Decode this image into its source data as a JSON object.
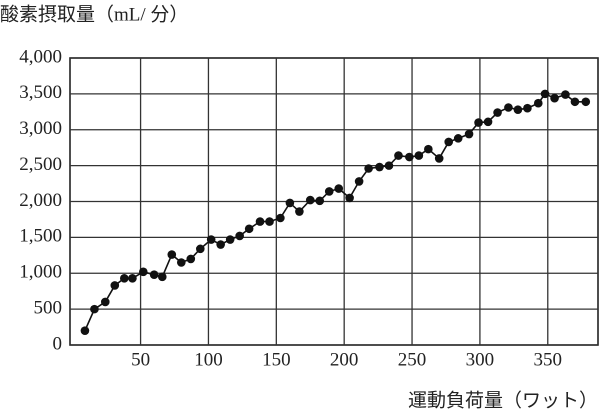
{
  "chart_data": {
    "type": "line",
    "title": "酸素摂取量（mL/ 分）",
    "x_label": "運動負荷量（ワット）",
    "x": [
      9,
      16,
      24,
      31,
      38,
      44,
      52,
      60,
      66,
      73,
      80,
      87,
      94,
      102,
      109,
      116,
      123,
      130,
      138,
      145,
      153,
      160,
      167,
      175,
      182,
      189,
      196,
      204,
      211,
      218,
      226,
      233,
      240,
      248,
      255,
      262,
      270,
      277,
      284,
      292,
      299,
      306,
      313,
      321,
      328,
      335,
      343,
      348,
      355,
      363,
      370,
      378
    ],
    "series": [
      {
        "name": "酸素摂取量",
        "color": "#111111",
        "values": [
          200,
          500,
          600,
          830,
          930,
          930,
          1020,
          980,
          950,
          1260,
          1150,
          1200,
          1340,
          1470,
          1400,
          1470,
          1520,
          1620,
          1720,
          1720,
          1770,
          1980,
          1860,
          2020,
          2010,
          2140,
          2180,
          2050,
          2280,
          2460,
          2480,
          2500,
          2640,
          2620,
          2640,
          2730,
          2600,
          2830,
          2880,
          2940,
          3100,
          3110,
          3240,
          3310,
          3280,
          3300,
          3370,
          3500,
          3440,
          3490,
          3390,
          3390
        ]
      }
    ],
    "xlim": [
      -2,
      387
    ],
    "xticks": [
      50,
      100,
      150,
      200,
      250,
      300,
      350
    ],
    "ylim": [
      0,
      4000
    ],
    "yticks": [
      0,
      500,
      {
        "value": 1000,
        "label": "1,000"
      },
      {
        "value": 1500,
        "label": "1,500"
      },
      {
        "value": 2000,
        "label": "2,000"
      },
      {
        "value": 2500,
        "label": "2,500"
      },
      {
        "value": 3000,
        "label": "3,000"
      },
      {
        "value": 3500,
        "label": "3,500"
      },
      {
        "value": 4000,
        "label": "4,000"
      }
    ],
    "grid": true
  }
}
